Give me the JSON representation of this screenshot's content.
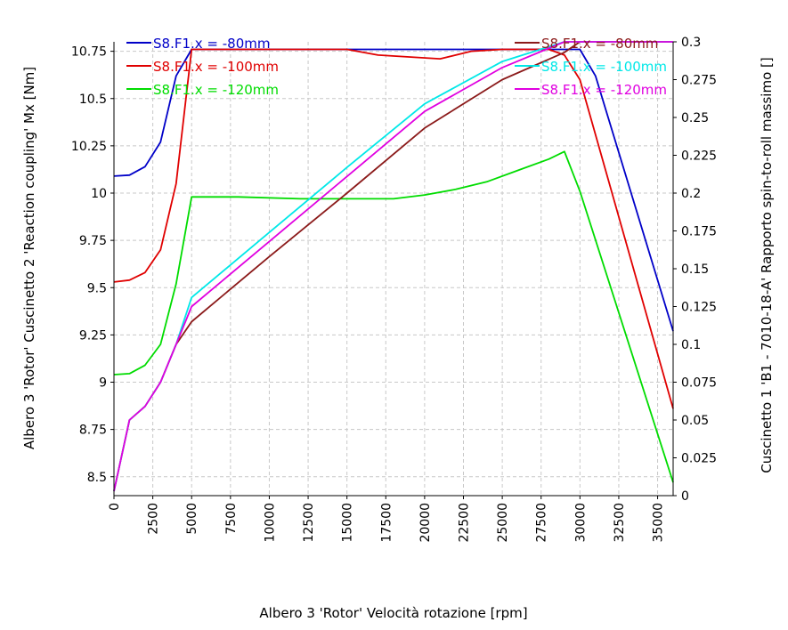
{
  "chart_data": {
    "type": "line",
    "xlabel": "Albero 3 'Rotor' Velocità rotazione [rpm]",
    "ylabel_left": "Albero 3 'Rotor' Cuscinetto 2 'Reaction coupling' Mx [Nm]",
    "ylabel_right": "Cuscinetto 1 'B1 - 7010-18-A' Rapporto spin-to-roll massimo []",
    "xlim": [
      0,
      36000
    ],
    "ylim_left": [
      8.4,
      10.8
    ],
    "ylim_right": [
      0,
      0.3
    ],
    "grid": true,
    "x_ticks": [
      "0",
      "2500",
      "5000",
      "7500",
      "10000",
      "12500",
      "15000",
      "17500",
      "20000",
      "22500",
      "25000",
      "27500",
      "30000",
      "32500",
      "35000"
    ],
    "x_tick_values": [
      0,
      2500,
      5000,
      7500,
      10000,
      12500,
      15000,
      17500,
      20000,
      22500,
      25000,
      27500,
      30000,
      32500,
      35000
    ],
    "y_left_ticks": [
      "8.5",
      "8.75",
      "9",
      "9.25",
      "9.5",
      "9.75",
      "10",
      "10.25",
      "10.5",
      "10.75"
    ],
    "y_left_tick_values": [
      8.5,
      8.75,
      9,
      9.25,
      9.5,
      9.75,
      10,
      10.25,
      10.5,
      10.75
    ],
    "y_right_ticks": [
      "0",
      "0.025",
      "0.05",
      "0.075",
      "0.1",
      "0.125",
      "0.15",
      "0.175",
      "0.2",
      "0.225",
      "0.25",
      "0.275",
      "0.3"
    ],
    "y_right_tick_values": [
      0,
      0.025,
      0.05,
      0.075,
      0.1,
      0.125,
      0.15,
      0.175,
      0.2,
      0.225,
      0.25,
      0.275,
      0.3
    ],
    "series": [
      {
        "name": "S8.F1.x = -80mm",
        "axis": "left",
        "color": "#0000c8",
        "x": [
          0,
          1000,
          2000,
          3000,
          4000,
          5000,
          10000,
          15000,
          20000,
          25000,
          29000,
          30000,
          31000,
          36000
        ],
        "y": [
          10.09,
          10.095,
          10.14,
          10.27,
          10.62,
          10.76,
          10.76,
          10.76,
          10.76,
          10.76,
          10.76,
          10.76,
          10.62,
          9.27
        ]
      },
      {
        "name": "S8.F1.x = -100mm",
        "axis": "left",
        "color": "#e00000",
        "x": [
          0,
          1000,
          2000,
          3000,
          4000,
          5000,
          10000,
          15000,
          17000,
          19000,
          21000,
          23000,
          25000,
          28000,
          29000,
          30000,
          36000
        ],
        "y": [
          9.53,
          9.54,
          9.58,
          9.7,
          10.05,
          10.76,
          10.76,
          10.76,
          10.73,
          10.72,
          10.71,
          10.75,
          10.76,
          10.76,
          10.73,
          10.6,
          8.86
        ]
      },
      {
        "name": "S8.F1.x = -120mm",
        "axis": "left",
        "color": "#00dc00",
        "x": [
          0,
          1000,
          2000,
          3000,
          4000,
          5000,
          8000,
          12000,
          15000,
          18000,
          20000,
          22000,
          24000,
          26000,
          28000,
          29000,
          30000,
          36000
        ],
        "y": [
          9.04,
          9.045,
          9.09,
          9.2,
          9.52,
          9.98,
          9.98,
          9.97,
          9.97,
          9.97,
          9.99,
          10.02,
          10.06,
          10.12,
          10.18,
          10.22,
          10.01,
          8.47
        ]
      },
      {
        "name": "S8.F1.x = -80mm",
        "axis": "right",
        "color": "#8b1a1a",
        "x": [
          0,
          1000,
          2000,
          3000,
          4000,
          5000,
          10000,
          15000,
          20000,
          25000,
          29000,
          30000,
          36000
        ],
        "y": [
          0.003,
          0.05,
          0.059,
          0.075,
          0.1,
          0.115,
          0.158,
          0.2,
          0.243,
          0.275,
          0.293,
          0.3,
          0.3
        ]
      },
      {
        "name": "S8.F1.x = -100mm",
        "axis": "right",
        "color": "#00e8e8",
        "x": [
          0,
          1000,
          2000,
          3000,
          4000,
          5000,
          10000,
          15000,
          20000,
          25000,
          29000,
          30000,
          36000
        ],
        "y": [
          0.003,
          0.05,
          0.059,
          0.075,
          0.1,
          0.131,
          0.174,
          0.217,
          0.259,
          0.287,
          0.3,
          0.3,
          0.3
        ]
      },
      {
        "name": "S8.F1.x = -120mm",
        "axis": "right",
        "color": "#e000e0",
        "x": [
          0,
          1000,
          2000,
          3000,
          4000,
          5000,
          10000,
          15000,
          20000,
          25000,
          29000,
          30000,
          36000
        ],
        "y": [
          0.003,
          0.05,
          0.059,
          0.075,
          0.1,
          0.125,
          0.168,
          0.211,
          0.254,
          0.283,
          0.3,
          0.3,
          0.3
        ]
      }
    ]
  }
}
